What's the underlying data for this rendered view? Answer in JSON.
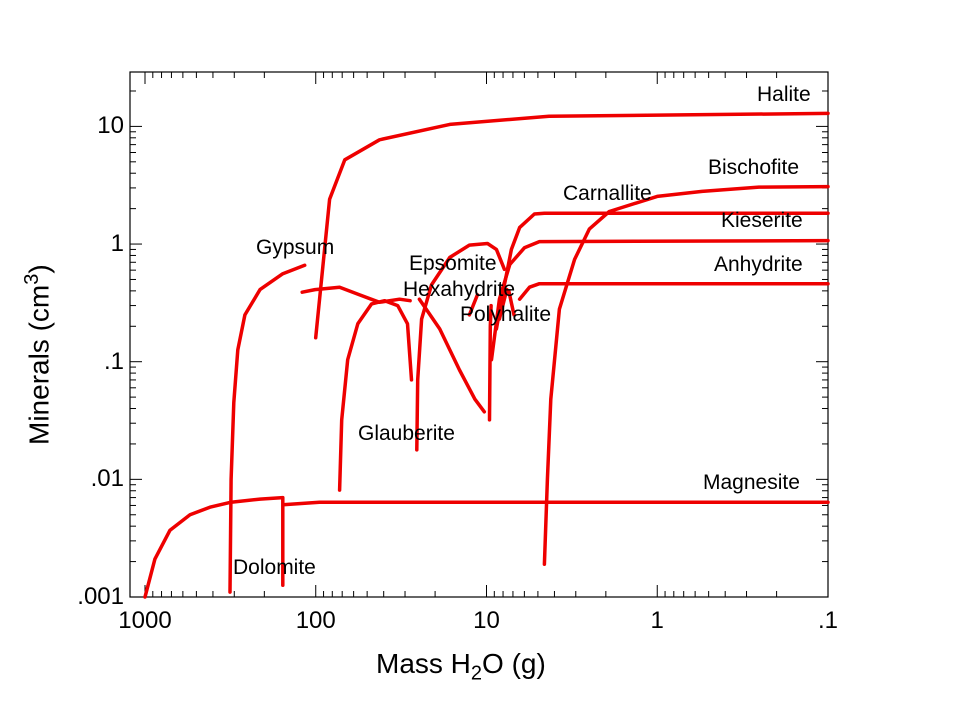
{
  "chart_data": {
    "type": "line",
    "title": "",
    "xlabel": {
      "pre": "Mass H",
      "sub": "2",
      "post": "O (g)"
    },
    "ylabel": {
      "pre": "Minerals (cm",
      "sup": "3",
      "post": ")"
    },
    "xscale": "log",
    "yscale": "log",
    "xlim": [
      1224,
      0.1
    ],
    "ylim": [
      0.001,
      29
    ],
    "xticks": [
      {
        "v": 1000,
        "label": "1000"
      },
      {
        "v": 100,
        "label": "100"
      },
      {
        "v": 10,
        "label": "10"
      },
      {
        "v": 1,
        "label": "1"
      },
      {
        "v": 0.1,
        "label": ".1"
      }
    ],
    "yticks": [
      {
        "v": 10,
        "label": "10"
      },
      {
        "v": 1,
        "label": "1"
      },
      {
        "v": 0.1,
        "label": ".1"
      },
      {
        "v": 0.01,
        "label": ".01"
      },
      {
        "v": 0.001,
        "label": ".001"
      }
    ],
    "line_color": "#ee0000",
    "series": [
      {
        "name": "Halite",
        "segments": [
          [
            [
              100,
              0.16
            ],
            [
              83,
              2.4
            ],
            [
              67.6,
              5.2
            ],
            [
              42.3,
              7.7
            ],
            [
              16.4,
              10.4
            ],
            [
              4.3,
              12.2
            ],
            [
              0.1,
              12.9
            ]
          ]
        ]
      },
      {
        "name": "Bischofite",
        "segments": [
          [
            [
              4.58,
              0.0019
            ],
            [
              4.4,
              0.01
            ],
            [
              4.2,
              0.048
            ],
            [
              3.74,
              0.28
            ],
            [
              3.05,
              0.74
            ],
            [
              2.5,
              1.34
            ],
            [
              1.91,
              1.89
            ],
            [
              1,
              2.54
            ],
            [
              0.546,
              2.8
            ],
            [
              0.254,
              3.05
            ],
            [
              0.1,
              3.08
            ]
          ]
        ]
      },
      {
        "name": "Carnallite",
        "segments": [
          [
            [
              8.75,
              0.19
            ],
            [
              7.85,
              0.45
            ],
            [
              7.15,
              0.9
            ],
            [
              6.4,
              1.38
            ],
            [
              5.24,
              1.8
            ],
            [
              4.58,
              1.83
            ],
            [
              0.1,
              1.83
            ]
          ]
        ]
      },
      {
        "name": "Kieserite",
        "segments": [
          [
            [
              9.35,
              0.104
            ],
            [
              8.4,
              0.34
            ],
            [
              7.3,
              0.67
            ],
            [
              6.0,
              0.93
            ],
            [
              4.9,
              1.05
            ],
            [
              0.1,
              1.07
            ]
          ]
        ]
      },
      {
        "name": "Anhydrite",
        "segments": [
          [
            [
              120,
              0.39
            ],
            [
              101,
              0.41
            ],
            [
              72.5,
              0.43
            ],
            [
              55.3,
              0.37
            ],
            [
              42.3,
              0.32
            ],
            [
              32.3,
              0.34
            ],
            [
              28,
              0.33
            ]
          ],
          [
            [
              6.4,
              0.34
            ],
            [
              5.6,
              0.43
            ],
            [
              4.9,
              0.46
            ],
            [
              0.1,
              0.46
            ]
          ]
        ]
      },
      {
        "name": "Gypsum",
        "segments": [
          [
            [
              318,
              0.0011
            ],
            [
              313,
              0.01
            ],
            [
              302,
              0.045
            ],
            [
              286,
              0.126
            ],
            [
              260,
              0.25
            ],
            [
              212,
              0.41
            ],
            [
              156,
              0.56
            ],
            [
              116,
              0.66
            ]
          ]
        ]
      },
      {
        "name": "Epsomite",
        "segments": [
          [
            [
              25.6,
              0.0178
            ],
            [
              25.3,
              0.07
            ],
            [
              24,
              0.23
            ],
            [
              21,
              0.45
            ],
            [
              16.4,
              0.77
            ],
            [
              12.6,
              0.98
            ],
            [
              9.86,
              1.01
            ],
            [
              8.75,
              0.9
            ],
            [
              7.85,
              0.61
            ]
          ]
        ]
      },
      {
        "name": "Hexahydrite",
        "segments": [
          [
            [
              24.7,
              0.34
            ],
            [
              18.8,
              0.19
            ],
            [
              14.4,
              0.085
            ],
            [
              11.7,
              0.048
            ],
            [
              10.3,
              0.0375
            ]
          ],
          [
            [
              9.6,
              0.032
            ],
            [
              9.5,
              0.2
            ],
            [
              9.4,
              0.3
            ]
          ]
        ]
      },
      {
        "name": "Polyhalite",
        "segments": [
          [
            [
              12.6,
              0.25
            ],
            [
              11.3,
              0.37
            ]
          ],
          [
            [
              8.4,
              0.23
            ],
            [
              7.6,
              0.41
            ]
          ],
          [
            [
              6.9,
              0.25
            ],
            [
              7.4,
              0.4
            ]
          ]
        ]
      },
      {
        "name": "Glauberite",
        "segments": [
          [
            [
              72.5,
              0.0081
            ],
            [
              70.5,
              0.032
            ],
            [
              65,
              0.104
            ],
            [
              56.7,
              0.21
            ],
            [
              47.1,
              0.31
            ],
            [
              39.5,
              0.33
            ],
            [
              33.1,
              0.3
            ],
            [
              29,
              0.21
            ],
            [
              27.5,
              0.07
            ]
          ]
        ]
      },
      {
        "name": "Dolomite",
        "segments": [
          [
            [
              1000,
              0.001
            ],
            [
              875,
              0.0021
            ],
            [
              714,
              0.0037
            ],
            [
              545,
              0.005
            ],
            [
              417,
              0.0058
            ],
            [
              313,
              0.0064
            ],
            [
              212,
              0.0068
            ],
            [
              156,
              0.007
            ],
            [
              156,
              0.00126
            ]
          ]
        ]
      },
      {
        "name": "Magnesite",
        "segments": [
          [
            [
              152,
              0.0061
            ],
            [
              95,
              0.0064
            ],
            [
              0.1,
              0.0064
            ]
          ]
        ]
      }
    ]
  }
}
